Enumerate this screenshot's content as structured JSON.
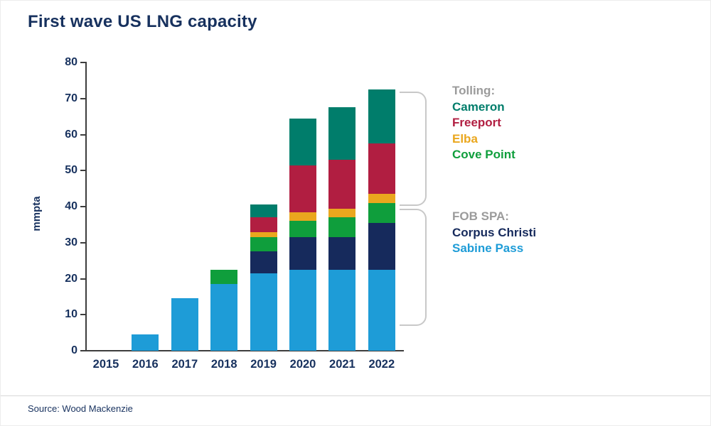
{
  "title": "First wave US LNG capacity",
  "source": "Source: Wood Mackenzie",
  "colors": {
    "title": "#17315e",
    "axis_text": "#17315e",
    "axis_line": "#3d3d3d",
    "legend_header": "#9b9b9b",
    "bracket": "#c8c8c8"
  },
  "legend": {
    "groups": [
      {
        "header": "Tolling:",
        "items": [
          {
            "label": "Cameron",
            "color": "#007d6b"
          },
          {
            "label": "Freeport",
            "color": "#b11e41"
          },
          {
            "label": "Elba",
            "color": "#eaa71e"
          },
          {
            "label": "Cove Point",
            "color": "#0f9e3c"
          }
        ]
      },
      {
        "header": "FOB SPA:",
        "items": [
          {
            "label": "Corpus Christi",
            "color": "#162a5c"
          },
          {
            "label": "Sabine Pass",
            "color": "#1e9cd7"
          }
        ]
      }
    ]
  },
  "chart_data": {
    "type": "bar",
    "stacked": true,
    "title": "First wave US LNG capacity",
    "xlabel": "",
    "ylabel": "mmpta",
    "ylim": [
      0,
      80
    ],
    "yticks": [
      0,
      10,
      20,
      30,
      40,
      50,
      60,
      70,
      80
    ],
    "grid": false,
    "legend_position": "right",
    "categories": [
      "2015",
      "2016",
      "2017",
      "2018",
      "2019",
      "2020",
      "2021",
      "2022"
    ],
    "series": [
      {
        "name": "Sabine Pass",
        "color": "#1e9cd7",
        "values": [
          0,
          4.5,
          14.5,
          18.5,
          21.5,
          22.5,
          22.5,
          22.5
        ]
      },
      {
        "name": "Corpus Christi",
        "color": "#162a5c",
        "values": [
          0,
          0,
          0,
          0,
          6,
          9,
          9,
          13
        ]
      },
      {
        "name": "Cove Point",
        "color": "#0f9e3c",
        "values": [
          0,
          0,
          0,
          4,
          4,
          4.5,
          5.5,
          5.5
        ]
      },
      {
        "name": "Elba",
        "color": "#eaa71e",
        "values": [
          0,
          0,
          0,
          0,
          1.5,
          2.5,
          2.5,
          2.5
        ]
      },
      {
        "name": "Freeport",
        "color": "#b11e41",
        "values": [
          0,
          0,
          0,
          0,
          4,
          13,
          13.5,
          14
        ]
      },
      {
        "name": "Cameron",
        "color": "#007d6b",
        "values": [
          0,
          0,
          0,
          0,
          3.5,
          13,
          14.5,
          15
        ]
      }
    ]
  }
}
